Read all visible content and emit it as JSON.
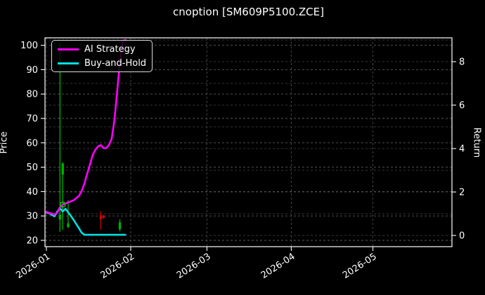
{
  "title": "cnoption [SM609P5100.ZCE]",
  "legend": {
    "items": [
      {
        "label": "AI Strategy",
        "color": "#ff00ff"
      },
      {
        "label": "Buy-and-Hold",
        "color": "#00e0e0"
      }
    ]
  },
  "axes": {
    "left_label": "Price",
    "right_label": "Return"
  },
  "chart_data": {
    "type": "line",
    "title": "cnoption [SM609P5100.ZCE]",
    "xlabel": "",
    "x_ticks": [
      "2026-01",
      "2026-02",
      "2026-03",
      "2026-04",
      "2026-05"
    ],
    "x_range_dates": [
      "2025-12-31",
      "2026-05-30"
    ],
    "y_left": {
      "label": "Price",
      "ticks": [
        20,
        30,
        40,
        50,
        60,
        70,
        80,
        90,
        100
      ],
      "range": [
        17.4,
        102.6
      ]
    },
    "y_right": {
      "label": "Return",
      "ticks": [
        0,
        2,
        4,
        6,
        8
      ],
      "minor_ticks": [
        0,
        1,
        2,
        3,
        4,
        5,
        6,
        7,
        8,
        9
      ],
      "range": [
        -0.5,
        9.1
      ]
    },
    "grid": "dashed, both axes, dark theme",
    "legend_position": "upper left",
    "series": [
      {
        "name": "AI Strategy",
        "axis": "right",
        "color": "#ff00ff",
        "width": 2.6,
        "points": [
          [
            "2026-01-01",
            1.08
          ],
          [
            "2026-01-02",
            1.04
          ],
          [
            "2026-01-03",
            1.0
          ],
          [
            "2026-01-04",
            0.96
          ],
          [
            "2026-01-05",
            1.05
          ],
          [
            "2026-01-06",
            1.3
          ],
          [
            "2026-01-07",
            1.42
          ],
          [
            "2026-01-08",
            1.47
          ],
          [
            "2026-01-09",
            1.52
          ],
          [
            "2026-01-11",
            1.62
          ],
          [
            "2026-01-12",
            1.72
          ],
          [
            "2026-01-13",
            1.83
          ],
          [
            "2026-01-14",
            2.05
          ],
          [
            "2026-01-15",
            2.4
          ],
          [
            "2026-01-16",
            2.85
          ],
          [
            "2026-01-17",
            3.25
          ],
          [
            "2026-01-18",
            3.7
          ],
          [
            "2026-01-19",
            3.95
          ],
          [
            "2026-01-20",
            4.1
          ],
          [
            "2026-01-21",
            4.16
          ],
          [
            "2026-01-22",
            4.02
          ],
          [
            "2026-01-23",
            4.02
          ],
          [
            "2026-01-24",
            4.16
          ],
          [
            "2026-01-25",
            4.45
          ],
          [
            "2026-01-26",
            5.3
          ],
          [
            "2026-01-27",
            6.6
          ],
          [
            "2026-01-28",
            7.95
          ],
          [
            "2026-01-29",
            8.95
          ],
          [
            "2026-01-30",
            9.0
          ]
        ]
      },
      {
        "name": "Buy-and-Hold",
        "axis": "right",
        "color": "#00e0e0",
        "width": 2.6,
        "points": [
          [
            "2026-01-01",
            1.06
          ],
          [
            "2026-01-02",
            1.02
          ],
          [
            "2026-01-03",
            0.95
          ],
          [
            "2026-01-04",
            0.88
          ],
          [
            "2026-01-05",
            1.1
          ],
          [
            "2026-01-06",
            1.26
          ],
          [
            "2026-01-07",
            1.1
          ],
          [
            "2026-01-08",
            1.23
          ],
          [
            "2026-01-09",
            1.06
          ],
          [
            "2026-01-10",
            0.9
          ],
          [
            "2026-01-11",
            0.72
          ],
          [
            "2026-01-12",
            0.52
          ],
          [
            "2026-01-13",
            0.32
          ],
          [
            "2026-01-14",
            0.12
          ],
          [
            "2026-01-15",
            0.03
          ],
          [
            "2026-01-30",
            0.03
          ]
        ]
      }
    ],
    "candles": [
      {
        "date": "2026-01-06",
        "open": 28.5,
        "high": 101.0,
        "low": 23.5,
        "close": 30.5
      },
      {
        "date": "2026-01-07",
        "open": 47.0,
        "high": 52.0,
        "low": 24.3,
        "close": 51.5
      },
      {
        "date": "2026-01-09",
        "open": 25.5,
        "high": 36.5,
        "low": 25.0,
        "close": 27.0
      },
      {
        "date": "2026-01-21",
        "open": 30.3,
        "high": 32.0,
        "low": 24.3,
        "close": 28.6
      },
      {
        "date": "2026-01-22",
        "open": 30.2,
        "high": 30.5,
        "low": 28.8,
        "close": 29.2
      },
      {
        "date": "2026-01-28",
        "open": 24.6,
        "high": 28.6,
        "low": 23.7,
        "close": 27.3
      }
    ],
    "candle_colors": {
      "up": "#00b000",
      "down": "#cc0000"
    },
    "markers": [
      {
        "date": "2026-01-07",
        "value": 1.42,
        "axis": "right",
        "shape": "open-circle",
        "color": "#00c000"
      }
    ]
  }
}
